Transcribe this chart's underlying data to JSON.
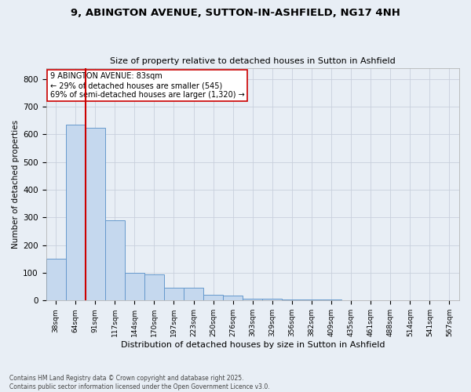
{
  "title1": "9, ABINGTON AVENUE, SUTTON-IN-ASHFIELD, NG17 4NH",
  "title2": "Size of property relative to detached houses in Sutton in Ashfield",
  "xlabel": "Distribution of detached houses by size in Sutton in Ashfield",
  "ylabel": "Number of detached properties",
  "categories": [
    "38sqm",
    "64sqm",
    "91sqm",
    "117sqm",
    "144sqm",
    "170sqm",
    "197sqm",
    "223sqm",
    "250sqm",
    "276sqm",
    "303sqm",
    "329sqm",
    "356sqm",
    "382sqm",
    "409sqm",
    "435sqm",
    "461sqm",
    "488sqm",
    "514sqm",
    "541sqm",
    "567sqm"
  ],
  "values": [
    150,
    635,
    625,
    290,
    100,
    95,
    45,
    45,
    20,
    18,
    8,
    8,
    5,
    3,
    3,
    2,
    2,
    0,
    2,
    0,
    2
  ],
  "bar_color": "#c5d8ee",
  "bar_edge_color": "#6699cc",
  "grid_color": "#c8d0dc",
  "background_color": "#e8eef5",
  "vline_color": "#cc0000",
  "annotation_text": "9 ABINGTON AVENUE: 83sqm\n← 29% of detached houses are smaller (545)\n69% of semi-detached houses are larger (1,320) →",
  "annotation_box_color": "white",
  "annotation_box_edge": "#cc0000",
  "footer": "Contains HM Land Registry data © Crown copyright and database right 2025.\nContains public sector information licensed under the Open Government Licence v3.0.",
  "ylim": [
    0,
    840
  ],
  "yticks": [
    0,
    100,
    200,
    300,
    400,
    500,
    600,
    700,
    800
  ]
}
